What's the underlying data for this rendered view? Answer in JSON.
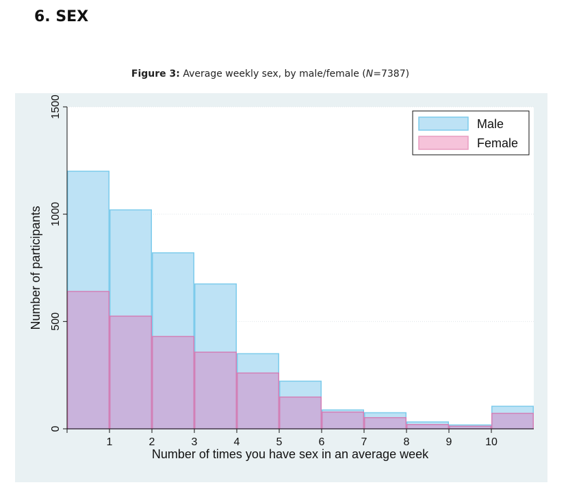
{
  "section": {
    "title": "6. SEX"
  },
  "caption": {
    "label": "Figure 3:",
    "text_before": " Average weekly sex, by male/female (",
    "n_symbol": "N",
    "text_after": "=7387)"
  },
  "colors": {
    "male_fill": "#bde2f5",
    "male_stroke": "#7ccbeb",
    "female_fill": "#e0a8cf",
    "overlap_fill": "#c9b3dc",
    "female_stroke": "#d27fb6",
    "legend_female_fill": "#f6c3da",
    "legend_female_stroke": "#e99cc0",
    "panel_bg": "#e9f1f3",
    "plot_bg": "#ffffff"
  },
  "chart_data": {
    "type": "bar",
    "subtype": "overlaid-histogram",
    "xlabel": "Number of times you have sex in an average week",
    "ylabel": "Number of participants",
    "xlim": [
      0,
      11
    ],
    "ylim": [
      0,
      1500
    ],
    "x_ticks": [
      1,
      2,
      3,
      4,
      5,
      6,
      7,
      8,
      9,
      10
    ],
    "y_ticks": [
      0,
      500,
      1000,
      1500
    ],
    "bin_edges": [
      0,
      1,
      2,
      3,
      4,
      5,
      6,
      7,
      8,
      9,
      10,
      11
    ],
    "grid": true,
    "legend_position": "top-right",
    "series": [
      {
        "name": "Male",
        "values": [
          1200,
          1020,
          820,
          675,
          350,
          222,
          88,
          75,
          32,
          18,
          105
        ]
      },
      {
        "name": "Female",
        "values": [
          640,
          525,
          430,
          357,
          260,
          148,
          78,
          52,
          20,
          12,
          72
        ]
      }
    ]
  }
}
